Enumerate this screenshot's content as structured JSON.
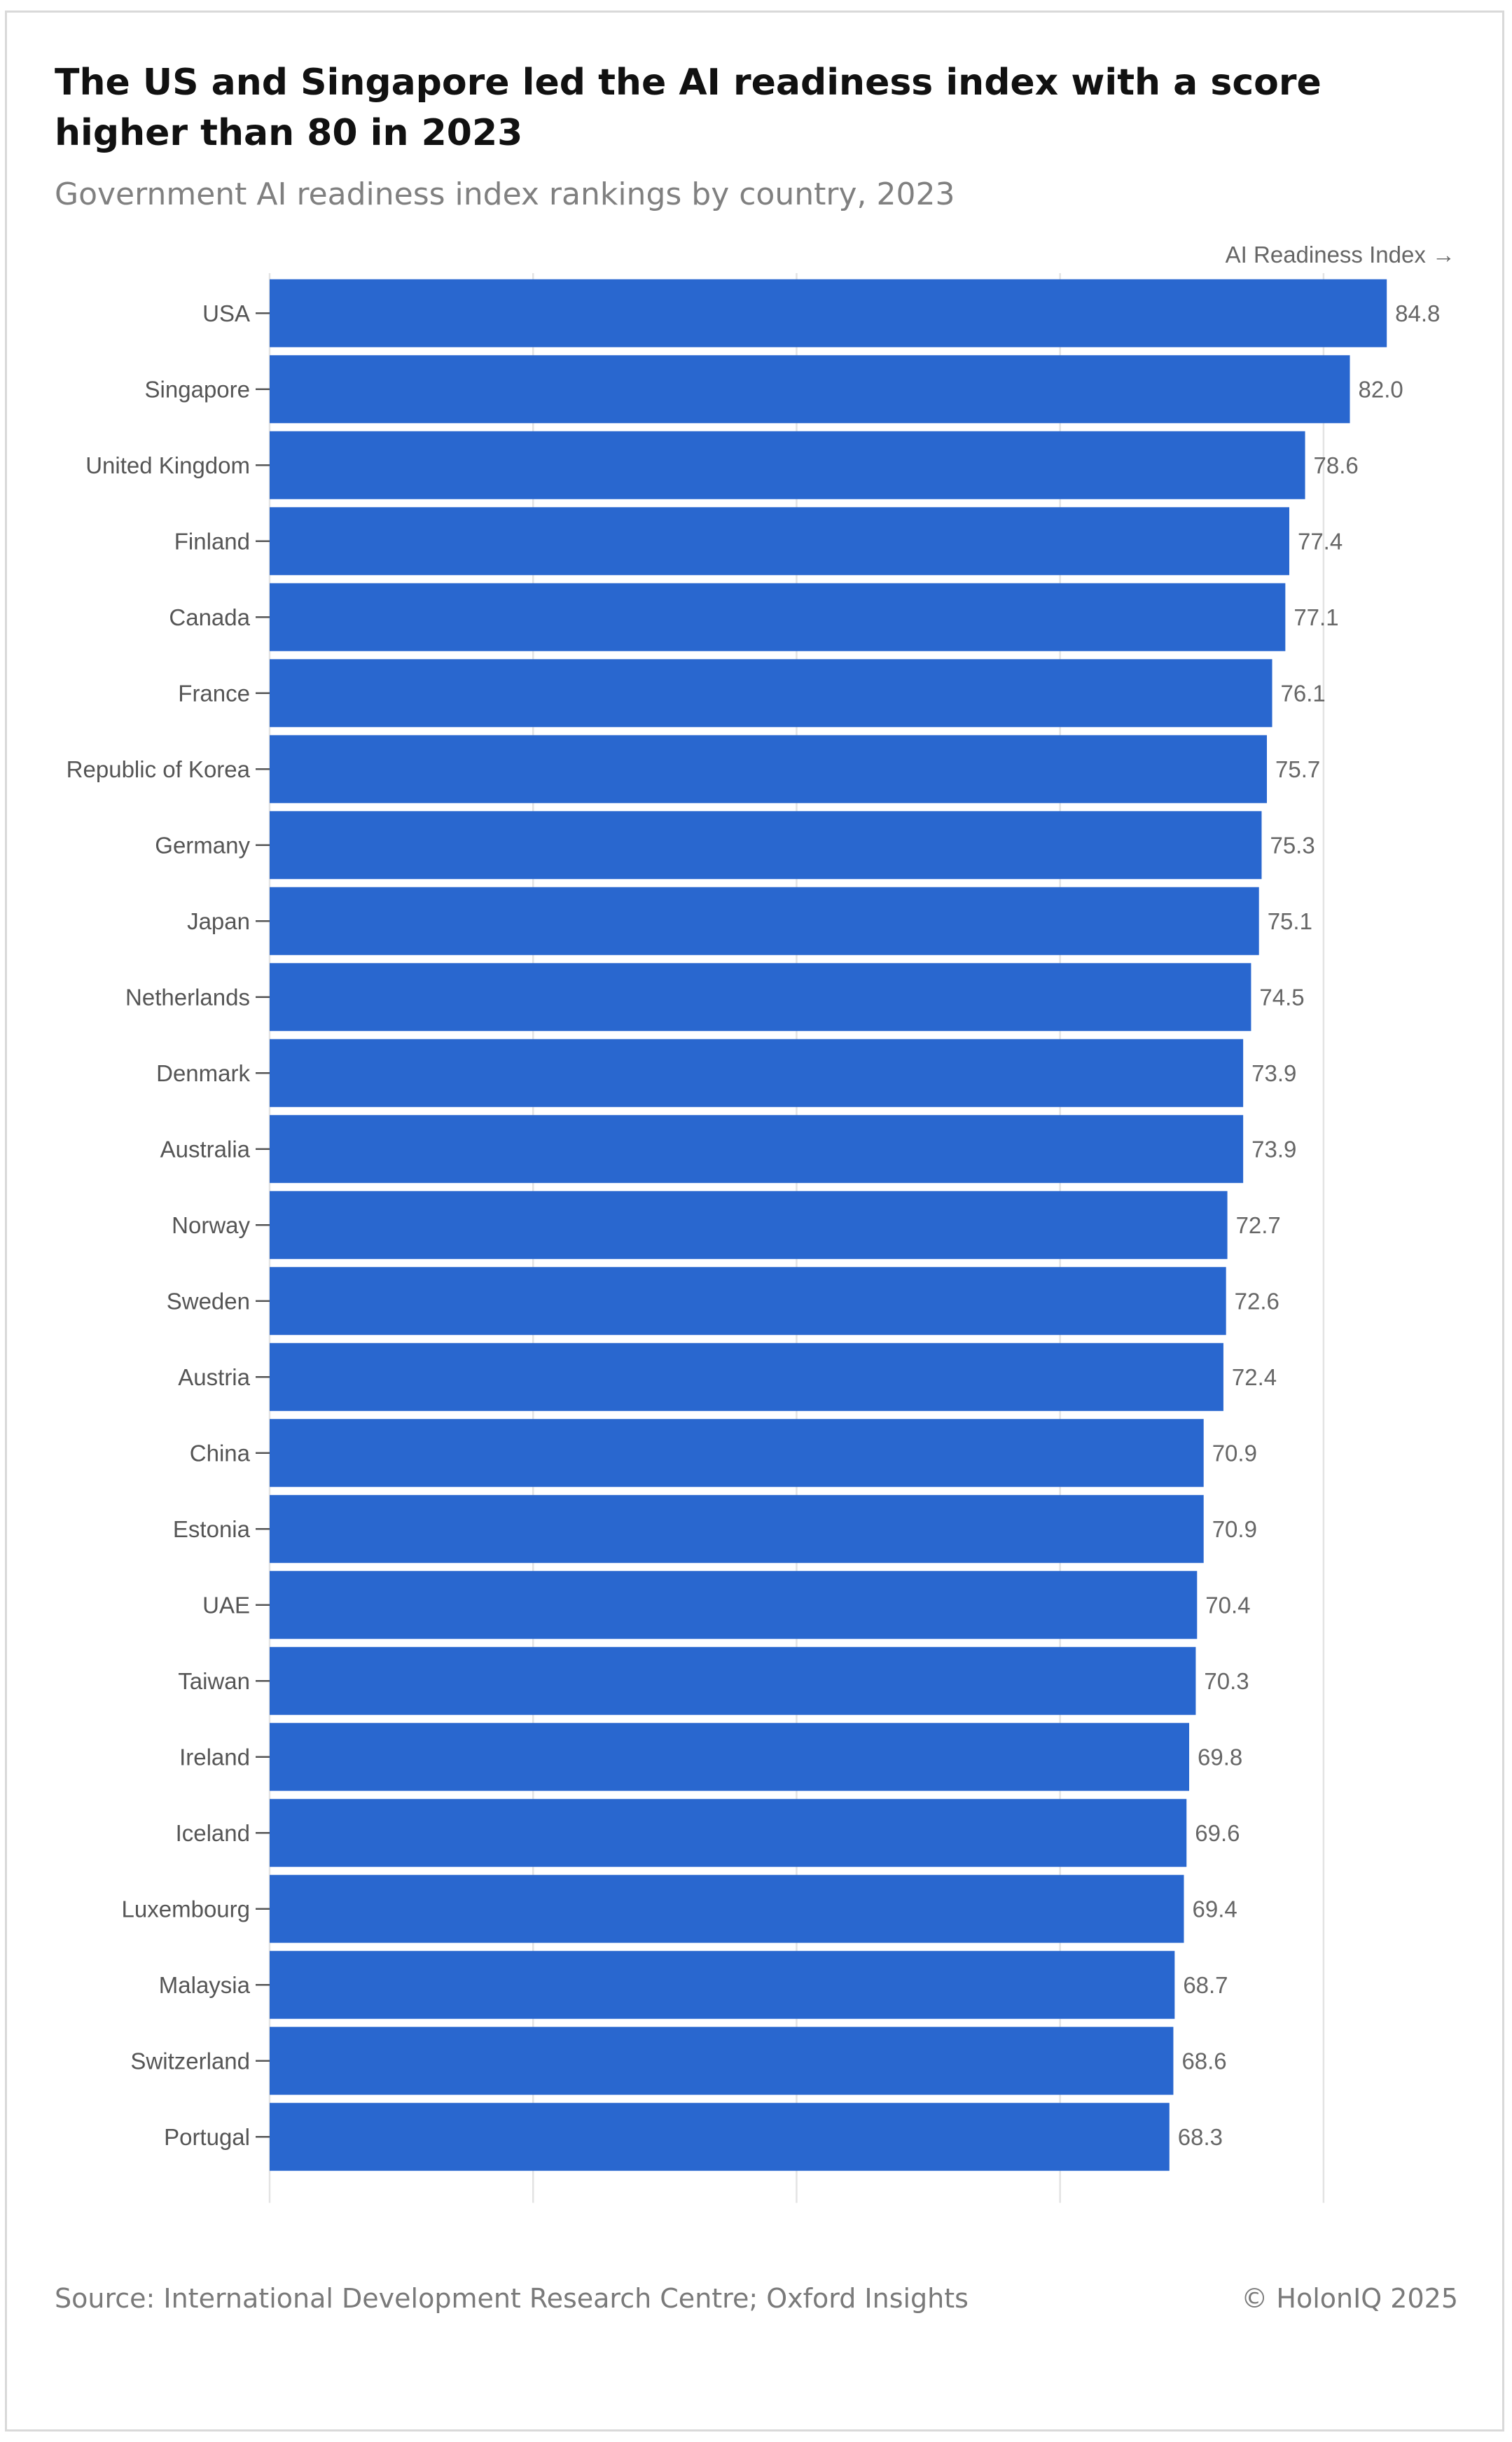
{
  "header": {
    "title": "The US and Singapore led the AI readiness index with a score higher than 80 in 2023",
    "subtitle": "Government AI readiness index rankings by country, 2023"
  },
  "footer": {
    "source": "Source: International Development Research Centre; Oxford Insights",
    "copyright": "© HolonIQ 2025"
  },
  "colors": {
    "bar": "#2967CF",
    "grid": "#e3e3e3",
    "label": "#555555",
    "value": "#666666"
  },
  "chart_data": {
    "type": "bar",
    "orientation": "horizontal",
    "title": "The US and Singapore led the AI readiness index with a score higher than 80 in 2023",
    "subtitle": "Government AI readiness index rankings by country, 2023",
    "xlabel": "AI Readiness Index →",
    "ylabel": "",
    "xlim": [
      0,
      90
    ],
    "grid": true,
    "categories": [
      "USA",
      "Singapore",
      "United Kingdom",
      "Finland",
      "Canada",
      "France",
      "Republic of Korea",
      "Germany",
      "Japan",
      "Netherlands",
      "Denmark",
      "Australia",
      "Norway",
      "Sweden",
      "Austria",
      "China",
      "Estonia",
      "UAE",
      "Taiwan",
      "Ireland",
      "Iceland",
      "Luxembourg",
      "Malaysia",
      "Switzerland",
      "Portugal"
    ],
    "values": [
      84.8,
      82.0,
      78.6,
      77.4,
      77.1,
      76.1,
      75.7,
      75.3,
      75.1,
      74.5,
      73.9,
      73.9,
      72.7,
      72.6,
      72.4,
      70.9,
      70.9,
      70.4,
      70.3,
      69.8,
      69.6,
      69.4,
      68.7,
      68.6,
      68.3
    ],
    "value_labels": [
      "84.8",
      "82.0",
      "78.6",
      "77.4",
      "77.1",
      "76.1",
      "75.7",
      "75.3",
      "75.1",
      "74.5",
      "73.9",
      "73.9",
      "72.7",
      "72.6",
      "72.4",
      "70.9",
      "70.9",
      "70.4",
      "70.3",
      "69.8",
      "69.6",
      "69.4",
      "68.7",
      "68.6",
      "68.3"
    ]
  }
}
